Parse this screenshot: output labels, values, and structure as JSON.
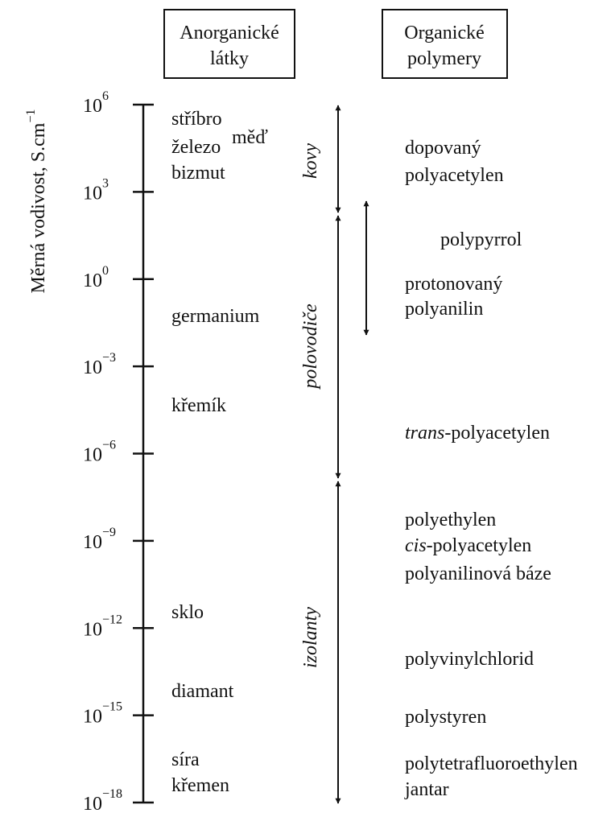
{
  "headers": {
    "inorganic": [
      "Anorganické",
      "látky"
    ],
    "organic": [
      "Organické",
      "polymery"
    ]
  },
  "axis": {
    "label": "Měrná vodivost, S.cm",
    "label_exp": "−1",
    "ticks": [
      {
        "base": "10",
        "exp": "6"
      },
      {
        "base": "10",
        "exp": "3"
      },
      {
        "base": "10",
        "exp": "0"
      },
      {
        "base": "10",
        "exp": "−3"
      },
      {
        "base": "10",
        "exp": "−6"
      },
      {
        "base": "10",
        "exp": "−9"
      },
      {
        "base": "10",
        "exp": "−12"
      },
      {
        "base": "10",
        "exp": "−15"
      },
      {
        "base": "10",
        "exp": "−18"
      }
    ]
  },
  "inorganic": [
    "stříbro",
    "měď",
    "železo",
    "bizmut",
    "germanium",
    "křemík",
    "sklo",
    "diamant",
    "síra",
    "křemen"
  ],
  "ranges": [
    "kovy",
    "polovodiče",
    "izolanty"
  ],
  "organic": [
    "dopovaný",
    "polyacetylen",
    "polypyrrol",
    "protonovaný",
    "polyanilin",
    {
      "italic": "trans",
      "rest": "-polyacetylen"
    },
    "polyethylen",
    {
      "italic": "cis",
      "rest": "-polyacetylen"
    },
    "polyanilinová báze",
    "polyvinylchlorid",
    "polystyren",
    "polytetrafluoroethylen",
    "jantar"
  ]
}
